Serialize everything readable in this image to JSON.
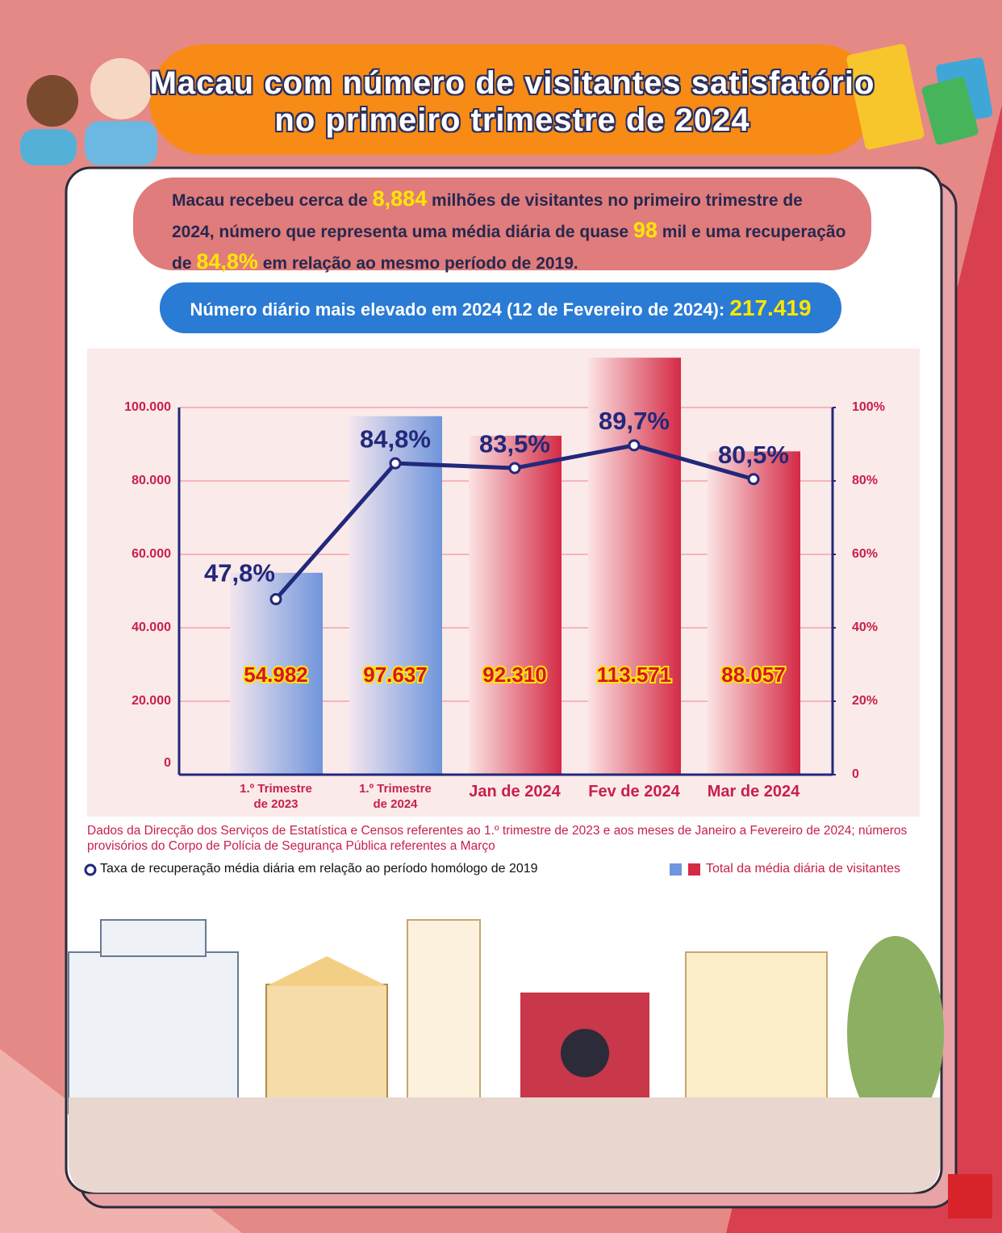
{
  "header": {
    "title": "Macau com número de visitantes satisfatório no primeiro trimestre de 2024"
  },
  "summary": [
    "Macau recebeu cerca de ",
    "8,884",
    " milhões de visitantes no primeiro trimestre de 2024, número que representa uma média diária de quase ",
    "98",
    " mil e uma recuperação de ",
    "84,8%",
    " em relação ao mesmo período de 2019."
  ],
  "highlight": {
    "text": "Número diário mais elevado em 2024 (12 de Fevereiro de 2024): ",
    "value": "217.419"
  },
  "chart_data": {
    "type": "bar",
    "categories": [
      "1.º Trimestre de 2023",
      "1.º Trimestre de 2024",
      "Jan de 2024",
      "Fev de 2024",
      "Mar de 2024"
    ],
    "series": [
      {
        "name": "Total da média diária de visitantes",
        "type": "bar",
        "colors": [
          "#6f95dc",
          "#6f95dc",
          "#d42a45",
          "#d42a45",
          "#d42a45"
        ],
        "values": [
          54982,
          97637,
          92310,
          113571,
          88057
        ],
        "value_labels": [
          "54.982",
          "97.637",
          "92.310",
          "113.571",
          "88.057"
        ]
      },
      {
        "name": "Taxa de recuperação média diária em relação ao período homólogo de 2019",
        "type": "line",
        "axis": "y2",
        "color": "#22287a",
        "values": [
          47.8,
          84.8,
          83.5,
          89.7,
          80.5
        ],
        "value_labels": [
          "47,8%",
          "84,8%",
          "83,5%",
          "89,7%",
          "80,5%"
        ]
      }
    ],
    "ylim": [
      0,
      100000
    ],
    "yticks": [
      0,
      {
        "value": 20000,
        "label": "20.000"
      },
      {
        "value": 40000,
        "label": "40.000"
      },
      {
        "value": 60000,
        "label": "60.000"
      },
      {
        "value": 80000,
        "label": "80.000"
      },
      {
        "value": 100000,
        "label": "100.000"
      }
    ],
    "y2lim": [
      0,
      100
    ],
    "y2ticks": [
      0,
      {
        "value": 20,
        "label": "20%"
      },
      {
        "value": 40,
        "label": "40%"
      },
      {
        "value": 60,
        "label": "60%"
      },
      {
        "value": 80,
        "label": "80%"
      },
      {
        "value": 100,
        "label": "100%"
      }
    ],
    "grid": true,
    "source": "Dados da Direcção dos Serviços de Estatística e Censos referentes ao 1.º trimestre de 2023 e aos meses de Janeiro a Fevereiro de 2024; números provisórios do Corpo de Polícia de Segurança Pública referentes a Março"
  }
}
